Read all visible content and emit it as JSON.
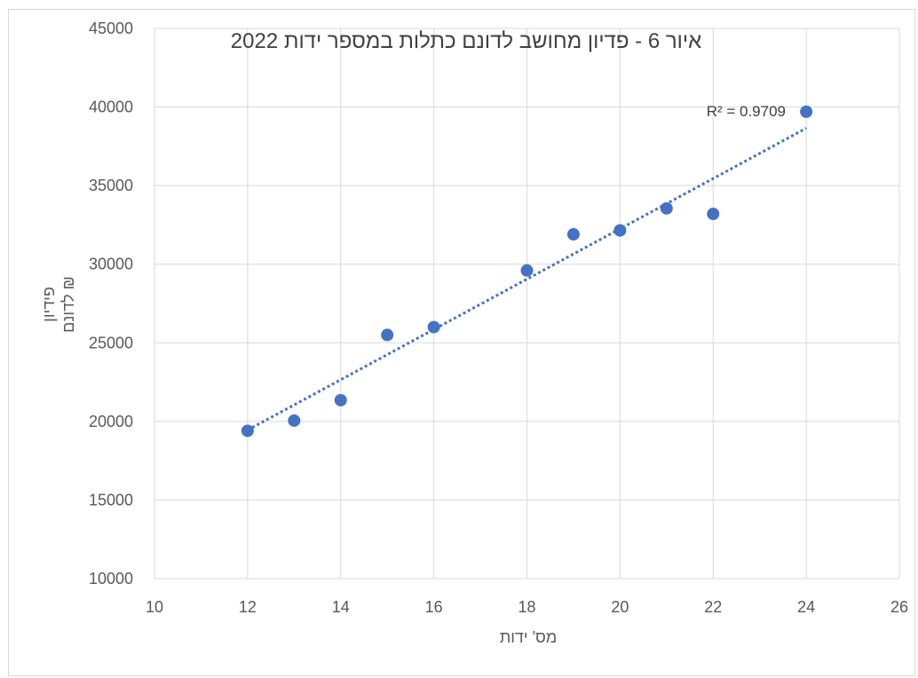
{
  "chart_data": {
    "type": "scatter",
    "title": "איור 6 - פדיון מחושב לדונם כתלות במספר ידות 2022",
    "xlabel": "מס' ידות",
    "ylabel_lines": [
      "פידיון",
      "₪ לדונם"
    ],
    "xlim": [
      10,
      26
    ],
    "ylim": [
      10000,
      45000
    ],
    "x_ticks": [
      "10",
      "12",
      "14",
      "16",
      "18",
      "20",
      "22",
      "24",
      "26"
    ],
    "y_ticks": [
      "10000",
      "15000",
      "20000",
      "25000",
      "30000",
      "35000",
      "40000",
      "45000"
    ],
    "grid": true,
    "series": [
      {
        "points": [
          {
            "x": 12,
            "y": 19400
          },
          {
            "x": 13,
            "y": 20050
          },
          {
            "x": 14,
            "y": 21350
          },
          {
            "x": 15,
            "y": 25500
          },
          {
            "x": 16,
            "y": 26000
          },
          {
            "x": 18,
            "y": 29600
          },
          {
            "x": 19,
            "y": 31900
          },
          {
            "x": 20,
            "y": 32150
          },
          {
            "x": 21,
            "y": 33550
          },
          {
            "x": 22,
            "y": 33200
          },
          {
            "x": 24,
            "y": 39700
          }
        ],
        "color": "#4472c4"
      }
    ],
    "trendline": {
      "type": "linear",
      "style": "dotted",
      "from": {
        "x": 12,
        "y": 19450
      },
      "to": {
        "x": 24,
        "y": 38650
      },
      "color": "#4472c4",
      "label": "R² = 0.9709"
    }
  }
}
